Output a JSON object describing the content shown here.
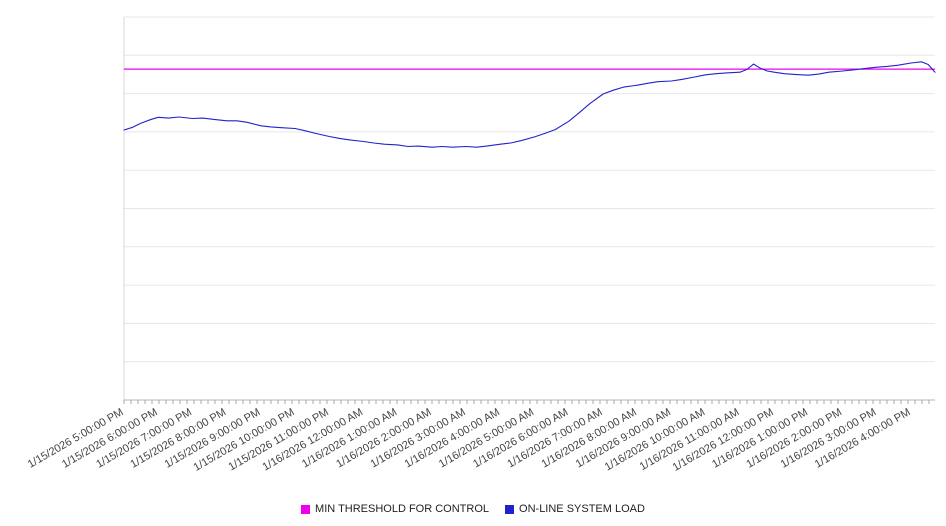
{
  "chart_data": {
    "type": "line",
    "title": "",
    "xlabel": "",
    "ylabel": "",
    "ylim": [
      0,
      100
    ],
    "y_grid_step": 10,
    "y_axis_labels_visible": false,
    "grid": "horizontal",
    "legend_position": "bottom-center",
    "x_domain_hours": [
      0,
      23.7
    ],
    "x_tick_labels": [
      "1/15/2026 5:00:00 PM",
      "1/15/2026 6:00:00 PM",
      "1/15/2026 7:00:00 PM",
      "1/15/2026 8:00:00 PM",
      "1/15/2026 9:00:00 PM",
      "1/15/2026 10:00:00 PM",
      "1/15/2026 11:00:00 PM",
      "1/16/2026 12:00:00 AM",
      "1/16/2026 1:00:00 AM",
      "1/16/2026 2:00:00 AM",
      "1/16/2026 3:00:00 AM",
      "1/16/2026 4:00:00 AM",
      "1/16/2026 5:00:00 AM",
      "1/16/2026 6:00:00 AM",
      "1/16/2026 7:00:00 AM",
      "1/16/2026 8:00:00 AM",
      "1/16/2026 9:00:00 AM",
      "1/16/2026 10:00:00 AM",
      "1/16/2026 11:00:00 AM",
      "1/16/2026 12:00:00 PM",
      "1/16/2026 1:00:00 PM",
      "1/16/2026 2:00:00 PM",
      "1/16/2026 3:00:00 PM",
      "1/16/2026 4:00:00 PM"
    ],
    "series": [
      {
        "name": "MIN THRESHOLD FOR CONTROL",
        "color": "#ee00ee",
        "style": "horizontal-threshold",
        "value": 86.4
      },
      {
        "name": "ON-LINE SYSTEM LOAD",
        "color": "#2222cc",
        "style": "line",
        "points": [
          [
            0,
            70.5
          ],
          [
            0.25,
            71.2
          ],
          [
            0.5,
            72.3
          ],
          [
            0.8,
            73.3
          ],
          [
            1,
            73.8
          ],
          [
            1.3,
            73.6
          ],
          [
            1.6,
            73.9
          ],
          [
            2,
            73.5
          ],
          [
            2.3,
            73.6
          ],
          [
            2.6,
            73.3
          ],
          [
            3,
            72.9
          ],
          [
            3.3,
            72.9
          ],
          [
            3.6,
            72.5
          ],
          [
            4,
            71.6
          ],
          [
            4.3,
            71.3
          ],
          [
            4.6,
            71.1
          ],
          [
            5,
            70.9
          ],
          [
            5.3,
            70.3
          ],
          [
            5.6,
            69.6
          ],
          [
            6,
            68.8
          ],
          [
            6.3,
            68.3
          ],
          [
            6.6,
            67.9
          ],
          [
            7,
            67.5
          ],
          [
            7.3,
            67.1
          ],
          [
            7.6,
            66.8
          ],
          [
            8,
            66.6
          ],
          [
            8.3,
            66.2
          ],
          [
            8.6,
            66.3
          ],
          [
            9,
            66.0
          ],
          [
            9.3,
            66.2
          ],
          [
            9.6,
            66.0
          ],
          [
            10,
            66.2
          ],
          [
            10.3,
            66.0
          ],
          [
            10.6,
            66.3
          ],
          [
            11,
            66.8
          ],
          [
            11.3,
            67.1
          ],
          [
            11.6,
            67.7
          ],
          [
            12,
            68.7
          ],
          [
            12.3,
            69.6
          ],
          [
            12.6,
            70.6
          ],
          [
            13,
            72.8
          ],
          [
            13.3,
            75.0
          ],
          [
            13.6,
            77.3
          ],
          [
            14,
            79.9
          ],
          [
            14.3,
            80.9
          ],
          [
            14.6,
            81.7
          ],
          [
            15,
            82.2
          ],
          [
            15.3,
            82.7
          ],
          [
            15.6,
            83.1
          ],
          [
            16,
            83.3
          ],
          [
            16.3,
            83.7
          ],
          [
            16.6,
            84.2
          ],
          [
            17,
            84.9
          ],
          [
            17.3,
            85.2
          ],
          [
            17.6,
            85.4
          ],
          [
            18,
            85.6
          ],
          [
            18.2,
            86.3
          ],
          [
            18.4,
            87.7
          ],
          [
            18.6,
            86.6
          ],
          [
            18.8,
            85.9
          ],
          [
            19,
            85.6
          ],
          [
            19.3,
            85.2
          ],
          [
            19.6,
            85.0
          ],
          [
            20,
            84.8
          ],
          [
            20.3,
            85.1
          ],
          [
            20.6,
            85.6
          ],
          [
            21,
            85.9
          ],
          [
            21.3,
            86.2
          ],
          [
            21.6,
            86.5
          ],
          [
            22,
            86.9
          ],
          [
            22.3,
            87.1
          ],
          [
            22.6,
            87.4
          ],
          [
            23,
            88.0
          ],
          [
            23.3,
            88.3
          ],
          [
            23.5,
            87.6
          ],
          [
            23.7,
            85.6
          ]
        ]
      }
    ]
  }
}
